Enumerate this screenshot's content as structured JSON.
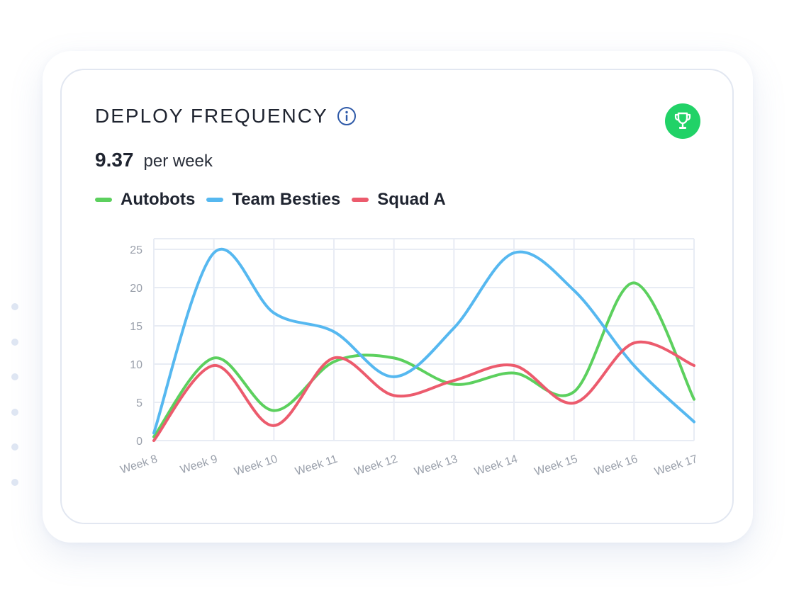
{
  "card": {
    "title": "DEPLOY FREQUENCY",
    "metric_value": "9.37",
    "metric_unit": "per week"
  },
  "icons": {
    "info": "info-icon",
    "trophy": "trophy-icon"
  },
  "colors": {
    "trophy_bg": "#21d267",
    "info": "#2f5aa8",
    "grid": "#e8ecf4",
    "tick_text": "#9aa0ab"
  },
  "chart_data": {
    "type": "line",
    "title": "DEPLOY FREQUENCY",
    "xlabel": "",
    "ylabel": "",
    "ylim": [
      0,
      25
    ],
    "yticks": [
      0,
      5,
      10,
      15,
      20,
      25
    ],
    "grid": true,
    "legend_position": "top-left",
    "categories": [
      "Week 8",
      "Week 9",
      "Week 10",
      "Week 11",
      "Week 12",
      "Week 13",
      "Week 14",
      "Week 15",
      "Week 16",
      "Week 17"
    ],
    "series": [
      {
        "name": "Autobots",
        "color": "#5cd05e",
        "points": [
          [
            0,
            0.5
          ],
          [
            1,
            11
          ],
          [
            2,
            4
          ],
          [
            3,
            10.5
          ],
          [
            4,
            11
          ],
          [
            5,
            7.5
          ],
          [
            6,
            9
          ],
          [
            7,
            6.5
          ],
          [
            8,
            21
          ],
          [
            9,
            5.5
          ]
        ]
      },
      {
        "name": "Team Besties",
        "color": "#56b8f0",
        "points": [
          [
            0,
            1
          ],
          [
            1,
            25
          ],
          [
            2,
            17
          ],
          [
            3,
            14.5
          ],
          [
            4,
            8.5
          ],
          [
            5,
            15
          ],
          [
            6,
            25
          ],
          [
            7,
            20
          ],
          [
            8,
            10
          ],
          [
            9,
            2.5
          ]
        ]
      },
      {
        "name": "Squad A",
        "color": "#ec5b6d",
        "points": [
          [
            0,
            0
          ],
          [
            1,
            10
          ],
          [
            2,
            2
          ],
          [
            3,
            11
          ],
          [
            4,
            6
          ],
          [
            5,
            8
          ],
          [
            6,
            10
          ],
          [
            7,
            5
          ],
          [
            8,
            13
          ],
          [
            9,
            10
          ]
        ]
      }
    ]
  }
}
